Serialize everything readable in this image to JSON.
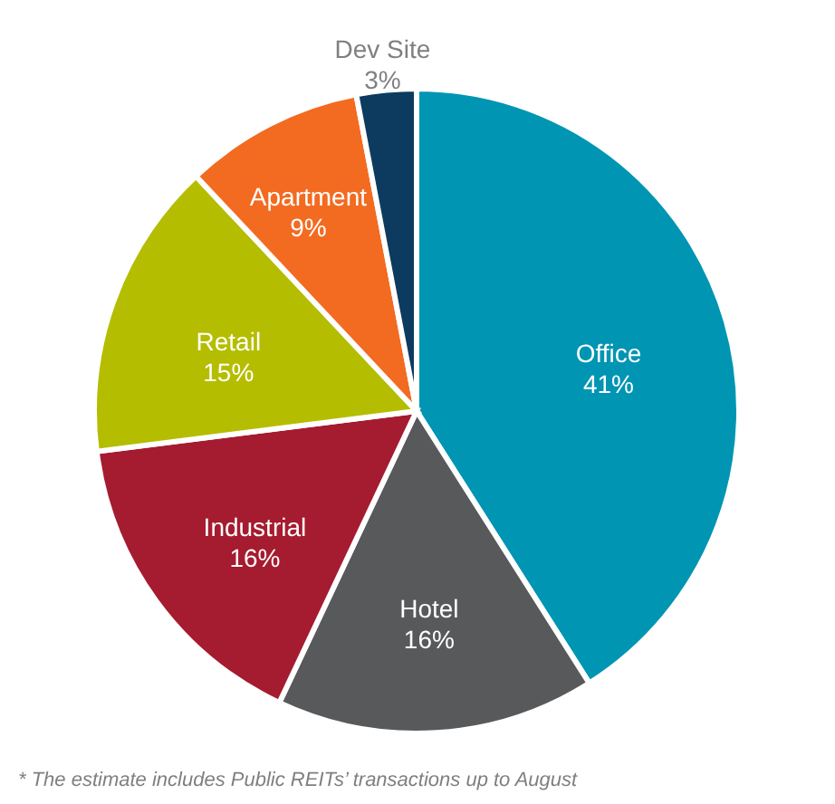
{
  "chart_data": {
    "type": "pie",
    "categories": [
      "Office",
      "Hotel",
      "Industrial",
      "Retail",
      "Apartment",
      "Dev Site"
    ],
    "values": [
      41,
      16,
      16,
      15,
      9,
      3
    ],
    "value_labels": [
      "41%",
      "16%",
      "16%",
      "15%",
      "9%",
      "3%"
    ],
    "colors": [
      "#0095b3",
      "#58595b",
      "#a51b2f",
      "#b5bd00",
      "#f26b21",
      "#0c3b5f"
    ],
    "legend": false,
    "annotations": [
      "* The estimate includes Public REITs’ transactions up to August"
    ]
  }
}
